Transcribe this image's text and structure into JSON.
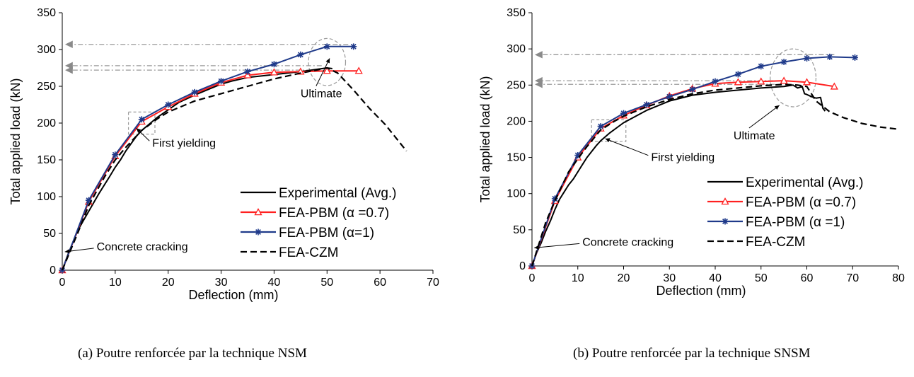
{
  "chart_data": [
    {
      "type": "line",
      "caption": "(a)   Poutre renforcée par la technique NSM",
      "xlabel": "Deflection (mm)",
      "ylabel": "Total applied load (kN)",
      "xlim": [
        0,
        70
      ],
      "ylim": [
        0,
        350
      ],
      "xticks": [
        0,
        10,
        20,
        30,
        40,
        50,
        60,
        70
      ],
      "yticks": [
        0,
        50,
        100,
        150,
        200,
        250,
        300,
        350
      ],
      "grid": false,
      "legend_position": "bottom-right",
      "series": [
        {
          "name": "Experimental (Avg.)",
          "color": "#000000",
          "style": "solid",
          "marker": "none",
          "points": [
            [
              0,
              0
            ],
            [
              1,
              20
            ],
            [
              2,
              38
            ],
            [
              3,
              55
            ],
            [
              5,
              80
            ],
            [
              7,
              105
            ],
            [
              9,
              128
            ],
            [
              10,
              140
            ],
            [
              11,
              150
            ],
            [
              12,
              162
            ],
            [
              13,
              172
            ],
            [
              14,
              182
            ],
            [
              15,
              190
            ],
            [
              16,
              196
            ],
            [
              17,
              202
            ],
            [
              18,
              208
            ],
            [
              20,
              218
            ],
            [
              22,
              228
            ],
            [
              25,
              238
            ],
            [
              28,
              247
            ],
            [
              30,
              253
            ],
            [
              32,
              257
            ],
            [
              35,
              262
            ],
            [
              40,
              266
            ],
            [
              45,
              270
            ],
            [
              50,
              275
            ],
            [
              51,
              274
            ]
          ]
        },
        {
          "name": "FEA-PBM (α =0.7)",
          "color": "#ff2020",
          "style": "solid",
          "marker": "triangle",
          "points": [
            [
              0,
              0
            ],
            [
              5,
              93
            ],
            [
              10,
              155
            ],
            [
              15,
              202
            ],
            [
              20,
              222
            ],
            [
              25,
              240
            ],
            [
              30,
              255
            ],
            [
              35,
              265
            ],
            [
              40,
              269
            ],
            [
              45,
              270
            ],
            [
              50,
              271
            ],
            [
              56,
              271
            ]
          ]
        },
        {
          "name": "FEA-PBM (α=1)",
          "color": "#1f3a8a",
          "style": "solid",
          "marker": "star",
          "points": [
            [
              0,
              0
            ],
            [
              5,
              95
            ],
            [
              10,
              157
            ],
            [
              15,
              205
            ],
            [
              20,
              225
            ],
            [
              25,
              242
            ],
            [
              30,
              257
            ],
            [
              35,
              270
            ],
            [
              40,
              280
            ],
            [
              45,
              293
            ],
            [
              50,
              304
            ],
            [
              55,
              304
            ]
          ]
        },
        {
          "name": "FEA-CZM",
          "color": "#000000",
          "style": "dashed",
          "marker": "none",
          "points": [
            [
              0,
              0
            ],
            [
              3,
              52
            ],
            [
              5,
              88
            ],
            [
              8,
              127
            ],
            [
              10,
              150
            ],
            [
              12,
              167
            ],
            [
              15,
              190
            ],
            [
              18,
              206
            ],
            [
              20,
              215
            ],
            [
              25,
              230
            ],
            [
              30,
              240
            ],
            [
              35,
              250
            ],
            [
              40,
              260
            ],
            [
              45,
              268
            ],
            [
              48,
              272
            ],
            [
              50,
              275
            ],
            [
              52,
              268
            ],
            [
              55,
              245
            ],
            [
              58,
              220
            ],
            [
              61,
              198
            ],
            [
              63,
              180
            ],
            [
              65,
              162
            ]
          ]
        }
      ],
      "reference_lines": [
        {
          "y": 307,
          "x_from": 54,
          "color": "#999999"
        },
        {
          "y": 278,
          "x_from": 49,
          "color": "#999999"
        },
        {
          "y": 272,
          "x_from": 47,
          "color": "#999999"
        }
      ],
      "annotations": [
        {
          "text": "Concrete cracking",
          "target": [
            0.5,
            25
          ],
          "label_at": [
            6.5,
            27
          ]
        },
        {
          "text": "First yielding",
          "target": [
            14,
            193
          ],
          "label_at": [
            17,
            168
          ]
        },
        {
          "text": "Ultimate",
          "target": [
            50.5,
            288
          ],
          "label_at": [
            45,
            235
          ]
        }
      ],
      "highlight_boxes": [
        {
          "type": "rect",
          "x": [
            12.5,
            17.5
          ],
          "y": [
            185,
            215
          ]
        },
        {
          "type": "ellipse",
          "cx": 50,
          "cy": 283,
          "rx": 3.5,
          "ry": 32
        }
      ]
    },
    {
      "type": "line",
      "caption": "(b)   Poutre renforcée par la technique SNSM",
      "xlabel": "Deflection (mm)",
      "ylabel": "Total applied load (kN)",
      "xlim": [
        0,
        80
      ],
      "ylim": [
        0,
        350
      ],
      "xticks": [
        0,
        10,
        20,
        30,
        40,
        50,
        60,
        70,
        80
      ],
      "yticks": [
        0,
        50,
        100,
        150,
        200,
        250,
        300,
        350
      ],
      "grid": false,
      "legend_position": "bottom-right",
      "series": [
        {
          "name": "Experimental (Avg.)",
          "color": "#000000",
          "style": "solid",
          "marker": "none",
          "points": [
            [
              0,
              0
            ],
            [
              1,
              18
            ],
            [
              2,
              32
            ],
            [
              3,
              48
            ],
            [
              4,
              62
            ],
            [
              5,
              78
            ],
            [
              6,
              92
            ],
            [
              7,
              102
            ],
            [
              8,
              112
            ],
            [
              9,
              120
            ],
            [
              10,
              130
            ],
            [
              11,
              140
            ],
            [
              12,
              150
            ],
            [
              13,
              158
            ],
            [
              14,
              166
            ],
            [
              15,
              173
            ],
            [
              17,
              184
            ],
            [
              20,
              198
            ],
            [
              25,
              215
            ],
            [
              30,
              228
            ],
            [
              35,
              236
            ],
            [
              40,
              240
            ],
            [
              45,
              243
            ],
            [
              50,
              246
            ],
            [
              55,
              248
            ],
            [
              57,
              250
            ],
            [
              58,
              246
            ],
            [
              59,
              248
            ],
            [
              59.5,
              238
            ],
            [
              60,
              237
            ],
            [
              61,
              234
            ],
            [
              62,
              232
            ],
            [
              63,
              233
            ],
            [
              63.5,
              218
            ],
            [
              64,
              214
            ]
          ]
        },
        {
          "name": "FEA-PBM (α =0.7)",
          "color": "#ff2020",
          "style": "solid",
          "marker": "triangle",
          "points": [
            [
              0,
              0
            ],
            [
              5,
              90
            ],
            [
              10,
              150
            ],
            [
              15,
              190
            ],
            [
              20,
              208
            ],
            [
              25,
              222
            ],
            [
              30,
              235
            ],
            [
              35,
              245
            ],
            [
              40,
              252
            ],
            [
              45,
              254
            ],
            [
              50,
              255
            ],
            [
              55,
              256
            ],
            [
              60,
              254
            ],
            [
              66,
              248
            ]
          ]
        },
        {
          "name": "FEA-PBM (α =1)",
          "color": "#1f3a8a",
          "style": "solid",
          "marker": "star",
          "points": [
            [
              0,
              0
            ],
            [
              5,
              93
            ],
            [
              10,
              153
            ],
            [
              15,
              193
            ],
            [
              20,
              211
            ],
            [
              25,
              223
            ],
            [
              30,
              234
            ],
            [
              35,
              244
            ],
            [
              40,
              255
            ],
            [
              45,
              265
            ],
            [
              50,
              276
            ],
            [
              55,
              282
            ],
            [
              60,
              287
            ],
            [
              65,
              289
            ],
            [
              70.5,
              288
            ]
          ]
        },
        {
          "name": "FEA-CZM",
          "color": "#000000",
          "style": "dashed",
          "marker": "none",
          "points": [
            [
              0,
              0
            ],
            [
              3,
              60
            ],
            [
              5,
              90
            ],
            [
              8,
              130
            ],
            [
              10,
              148
            ],
            [
              12,
              165
            ],
            [
              15,
              188
            ],
            [
              18,
              200
            ],
            [
              20,
              207
            ],
            [
              25,
              220
            ],
            [
              30,
              230
            ],
            [
              35,
              238
            ],
            [
              40,
              243
            ],
            [
              45,
              246
            ],
            [
              50,
              249
            ],
            [
              55,
              251
            ],
            [
              58,
              250
            ],
            [
              60,
              248
            ],
            [
              62,
              228
            ],
            [
              65,
              213
            ],
            [
              68,
              205
            ],
            [
              72,
              197
            ],
            [
              76,
              192
            ],
            [
              80,
              189
            ]
          ]
        }
      ],
      "reference_lines": [
        {
          "y": 292,
          "x_from": 66,
          "color": "#999999"
        },
        {
          "y": 256,
          "x_from": 55,
          "color": "#999999"
        },
        {
          "y": 251,
          "x_from": 53,
          "color": "#999999"
        }
      ],
      "annotations": [
        {
          "text": "Concrete cracking",
          "target": [
            0.5,
            25
          ],
          "label_at": [
            11,
            28
          ]
        },
        {
          "text": "First yielding",
          "target": [
            16,
            176
          ],
          "label_at": [
            26,
            145
          ]
        },
        {
          "text": "Ultimate",
          "target": [
            54,
            222
          ],
          "label_at": [
            44,
            175
          ]
        }
      ],
      "highlight_boxes": [
        {
          "type": "rect",
          "x": [
            13,
            20.5
          ],
          "y": [
            172,
            202
          ]
        },
        {
          "type": "ellipse",
          "cx": 57,
          "cy": 260,
          "rx": 5,
          "ry": 40
        }
      ]
    }
  ]
}
